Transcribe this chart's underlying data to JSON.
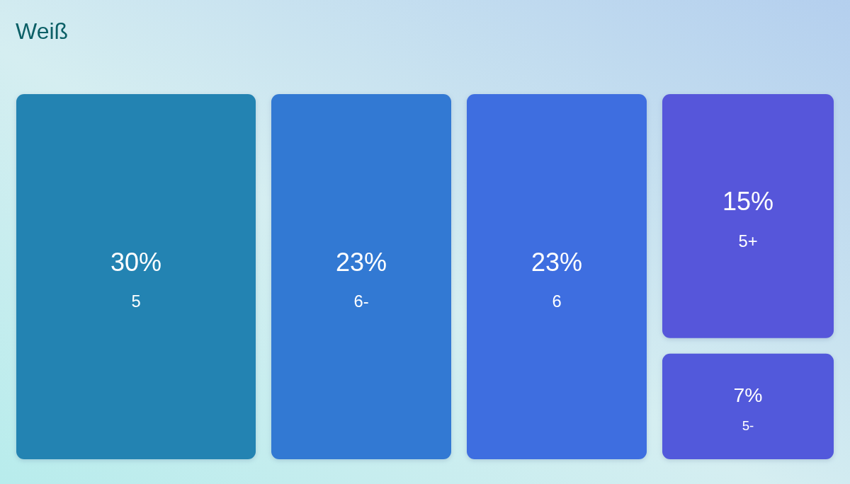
{
  "chart_data": {
    "type": "other",
    "title": "Weiß",
    "categories": [
      "5",
      "6-",
      "6",
      "5+",
      "5-"
    ],
    "values": [
      30,
      23,
      23,
      15,
      7
    ],
    "value_labels": [
      "30%",
      "23%",
      "23%",
      "15%",
      "7%"
    ],
    "colors": [
      "#2383b2",
      "#3279d3",
      "#3e6ee0",
      "#5656da",
      "#5259db"
    ]
  }
}
